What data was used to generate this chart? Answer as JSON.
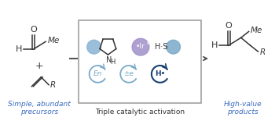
{
  "bg_color": "#ffffff",
  "box_edge_color": "#999999",
  "label_left": "Simple, abundant\nprecursors",
  "label_center": "Triple catalytic activation",
  "label_right": "High-value\nproducts",
  "label_left_color": "#3a6bbf",
  "label_center_color": "#333333",
  "label_right_color": "#3a6bbf",
  "bond_color": "#333333",
  "amine_sphere_color": "#8ab4d4",
  "ir_sphere_color": "#a090c8",
  "thiol_sphere_color": "#7aaac8",
  "en_circle_color": "#7aaac8",
  "pm_circle_color": "#7aaac8",
  "h_circle_color": "#1a3f6f",
  "arrow_color": "#555555",
  "dash_color": "#555555"
}
